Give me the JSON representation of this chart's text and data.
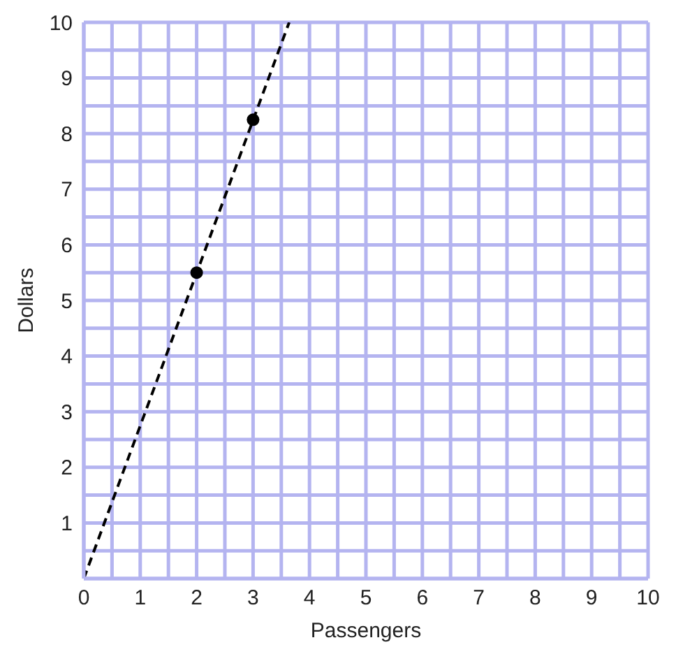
{
  "chart_data": {
    "type": "line",
    "xlabel": "Passengers",
    "ylabel": "Dollars",
    "xlim": [
      0,
      10
    ],
    "ylim": [
      0,
      10
    ],
    "xticks": [
      0,
      {
        "value": 0.5,
        "label": null
      },
      1,
      {
        "value": 1.5,
        "label": null
      },
      2,
      {
        "value": 2.5,
        "label": null
      },
      3,
      {
        "value": 3.5,
        "label": null
      },
      4,
      {
        "value": 4.5,
        "label": null
      },
      5,
      {
        "value": 5.5,
        "label": null
      },
      6,
      {
        "value": 6.5,
        "label": null
      },
      7,
      {
        "value": 7.5,
        "label": null
      },
      8,
      {
        "value": 8.5,
        "label": null
      },
      9,
      {
        "value": 9.5,
        "label": null
      },
      10
    ],
    "yticks": [
      {
        "value": 0,
        "label": null
      },
      {
        "value": 0.5,
        "label": null
      },
      1,
      {
        "value": 1.5,
        "label": null
      },
      2,
      {
        "value": 2.5,
        "label": null
      },
      3,
      {
        "value": 3.5,
        "label": null
      },
      4,
      {
        "value": 4.5,
        "label": null
      },
      5,
      {
        "value": 5.5,
        "label": null
      },
      6,
      {
        "value": 6.5,
        "label": null
      },
      7,
      {
        "value": 7.5,
        "label": null
      },
      8,
      {
        "value": 8.5,
        "label": null
      },
      9,
      {
        "value": 9.5,
        "label": null
      },
      10
    ],
    "grid": true,
    "series": [
      {
        "x": [
          0,
          3.64
        ],
        "values": [
          0,
          10
        ],
        "color": "#000000",
        "line_style": "dashed",
        "marker": "none"
      },
      {
        "type": "scatter",
        "x": [
          2,
          3
        ],
        "values": [
          5.5,
          8.25
        ],
        "color": "#000000",
        "marker": "circle"
      }
    ]
  }
}
